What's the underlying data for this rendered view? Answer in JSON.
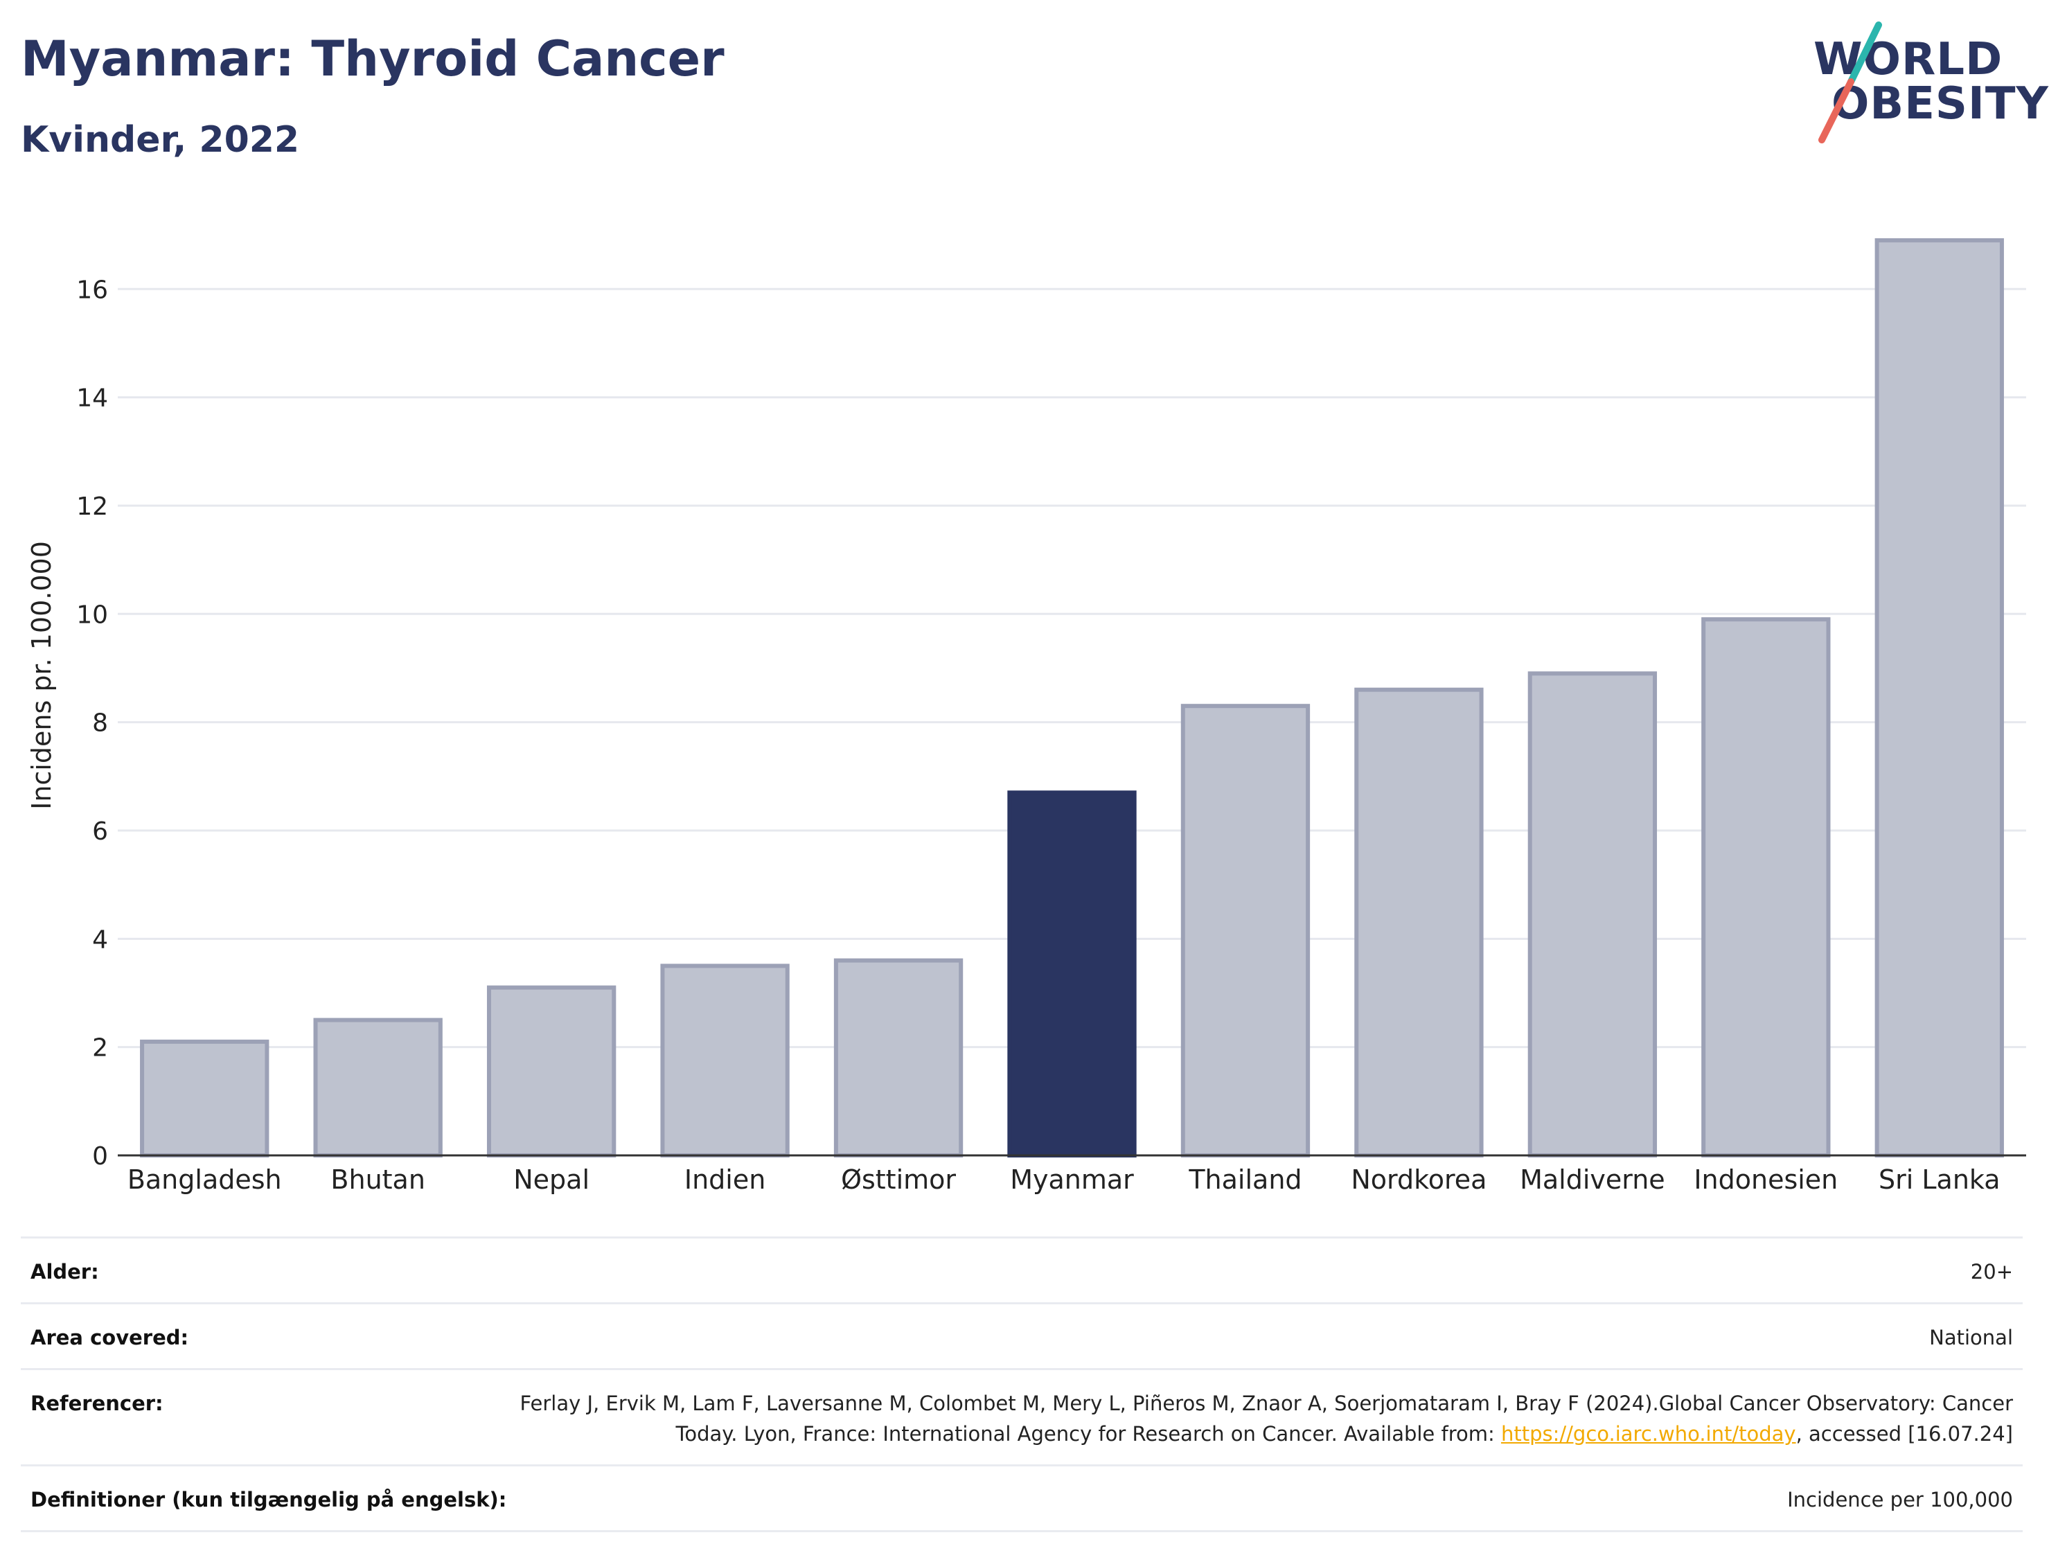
{
  "header": {
    "title": "Myanmar: Thyroid Cancer",
    "subtitle": "Kvinder, 2022"
  },
  "logo": {
    "line1": "WORLD",
    "line2": "OBESITY",
    "colors": {
      "text": "#2a3561",
      "slash_top": "#2bb5ad",
      "slash_bottom": "#e8665a"
    }
  },
  "chart_data": {
    "type": "bar",
    "categories": [
      "Bangladesh",
      "Bhutan",
      "Nepal",
      "Indien",
      "Østtimor",
      "Myanmar",
      "Thailand",
      "Nordkorea",
      "Maldiverne",
      "Indonesien",
      "Sri Lanka"
    ],
    "values": [
      2.1,
      2.5,
      3.1,
      3.5,
      3.6,
      6.7,
      8.3,
      8.6,
      8.9,
      9.9,
      16.9
    ],
    "highlight": "Myanmar",
    "ylabel": "Incidens pr. 100.000",
    "xlabel": "",
    "ylim": [
      0,
      17.5
    ],
    "yticks": [
      0,
      2,
      4,
      6,
      8,
      10,
      12,
      14,
      16
    ],
    "grid": true,
    "colors": {
      "bar": "#bec2cf",
      "bar_border": "#9ca1b6",
      "highlight": "#2a3561",
      "grid": "#e6e8ee",
      "axis": "#333333"
    }
  },
  "meta": {
    "rows": [
      {
        "key": "Alder:",
        "value": "20+"
      },
      {
        "key": "Area covered:",
        "value": "National"
      },
      {
        "key": "Referencer:",
        "value_before": "Ferlay J, Ervik M, Lam F, Laversanne M, Colombet M, Mery L, Piñeros M, Znaor A, Soerjomataram I, Bray F (2024).Global Cancer Observatory: Cancer Today. Lyon, France: International Agency for Research on Cancer. Available from: ",
        "link": "https://gco.iarc.who.int/today",
        "value_after": ", accessed [16.07.24]"
      },
      {
        "key": "Definitioner (kun tilgængelig på engelsk):",
        "value": "Incidence per 100,000"
      }
    ]
  }
}
